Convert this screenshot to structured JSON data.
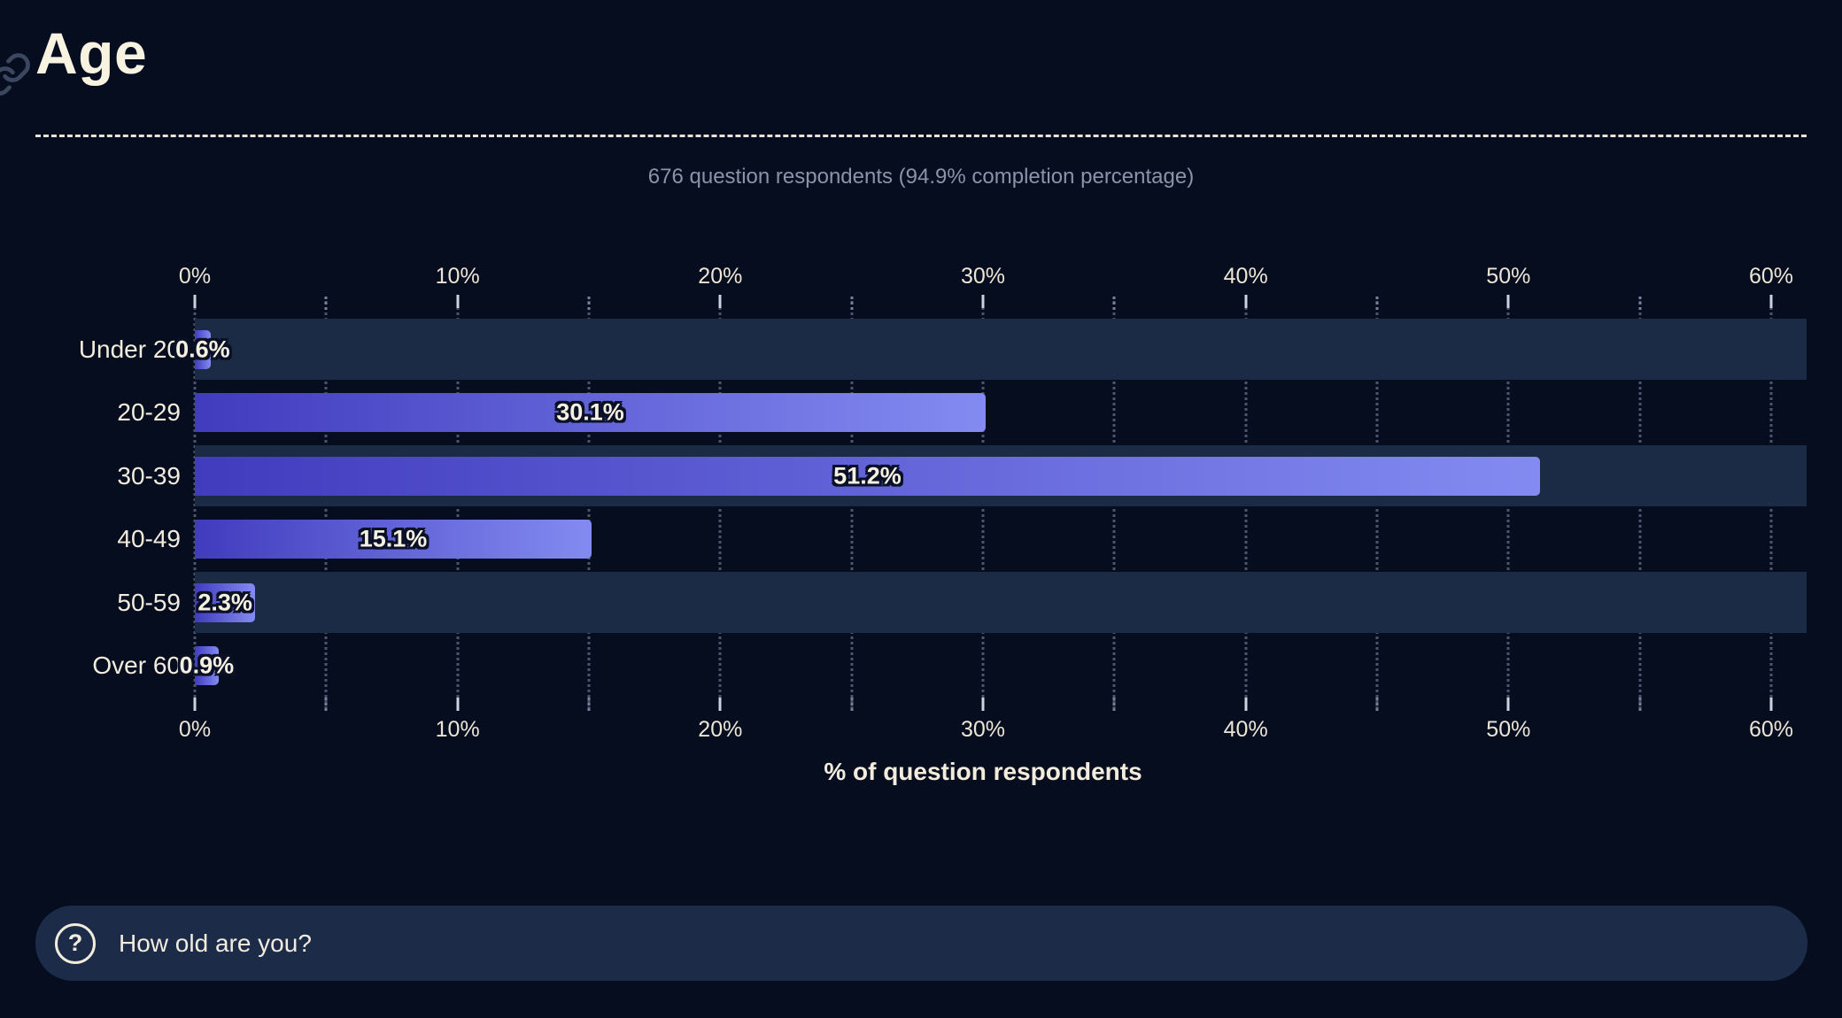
{
  "page": {
    "title": "Age",
    "subtitle": "676 question respondents (94.9% completion percentage)",
    "question_bar": {
      "icon": "question-mark-circle-icon",
      "icon_glyph": "?",
      "label": "How old are you?"
    },
    "anchor_icon": "link-icon"
  },
  "chart_data": {
    "type": "bar",
    "orientation": "horizontal",
    "title": "Age",
    "categories": [
      "Under 20",
      "20-29",
      "30-39",
      "40-49",
      "50-59",
      "Over 60"
    ],
    "values": [
      0.6,
      30.1,
      51.2,
      15.1,
      2.3,
      0.9
    ],
    "value_labels": [
      "0.6%",
      "30.1%",
      "51.2%",
      "15.1%",
      "2.3%",
      "0.9%"
    ],
    "xlabel": "% of question respondents",
    "ylabel": "",
    "x_ticks": [
      0,
      10,
      20,
      30,
      40,
      50,
      60
    ],
    "x_tick_labels": [
      "0%",
      "10%",
      "20%",
      "30%",
      "40%",
      "50%",
      "60%"
    ],
    "x_minor_ticks": [
      5,
      15,
      25,
      35,
      45,
      55
    ],
    "xlim": [
      0,
      61.4
    ],
    "grid": "dotted-vertical-every-5pct",
    "axes_shown": [
      "top",
      "bottom"
    ],
    "legend": null,
    "striped_rows": [
      0,
      2,
      4
    ]
  },
  "colors": {
    "background": "#050d1f",
    "row_band": "#1b2a45",
    "bar_gradient_start": "#413bbe",
    "bar_gradient_end": "#838bf1",
    "text_cream": "#f3ecdc",
    "subtitle_gray": "#8b93a9",
    "value_label_outline": "#0a1126",
    "question_bar_bg": "#1c2b47"
  }
}
